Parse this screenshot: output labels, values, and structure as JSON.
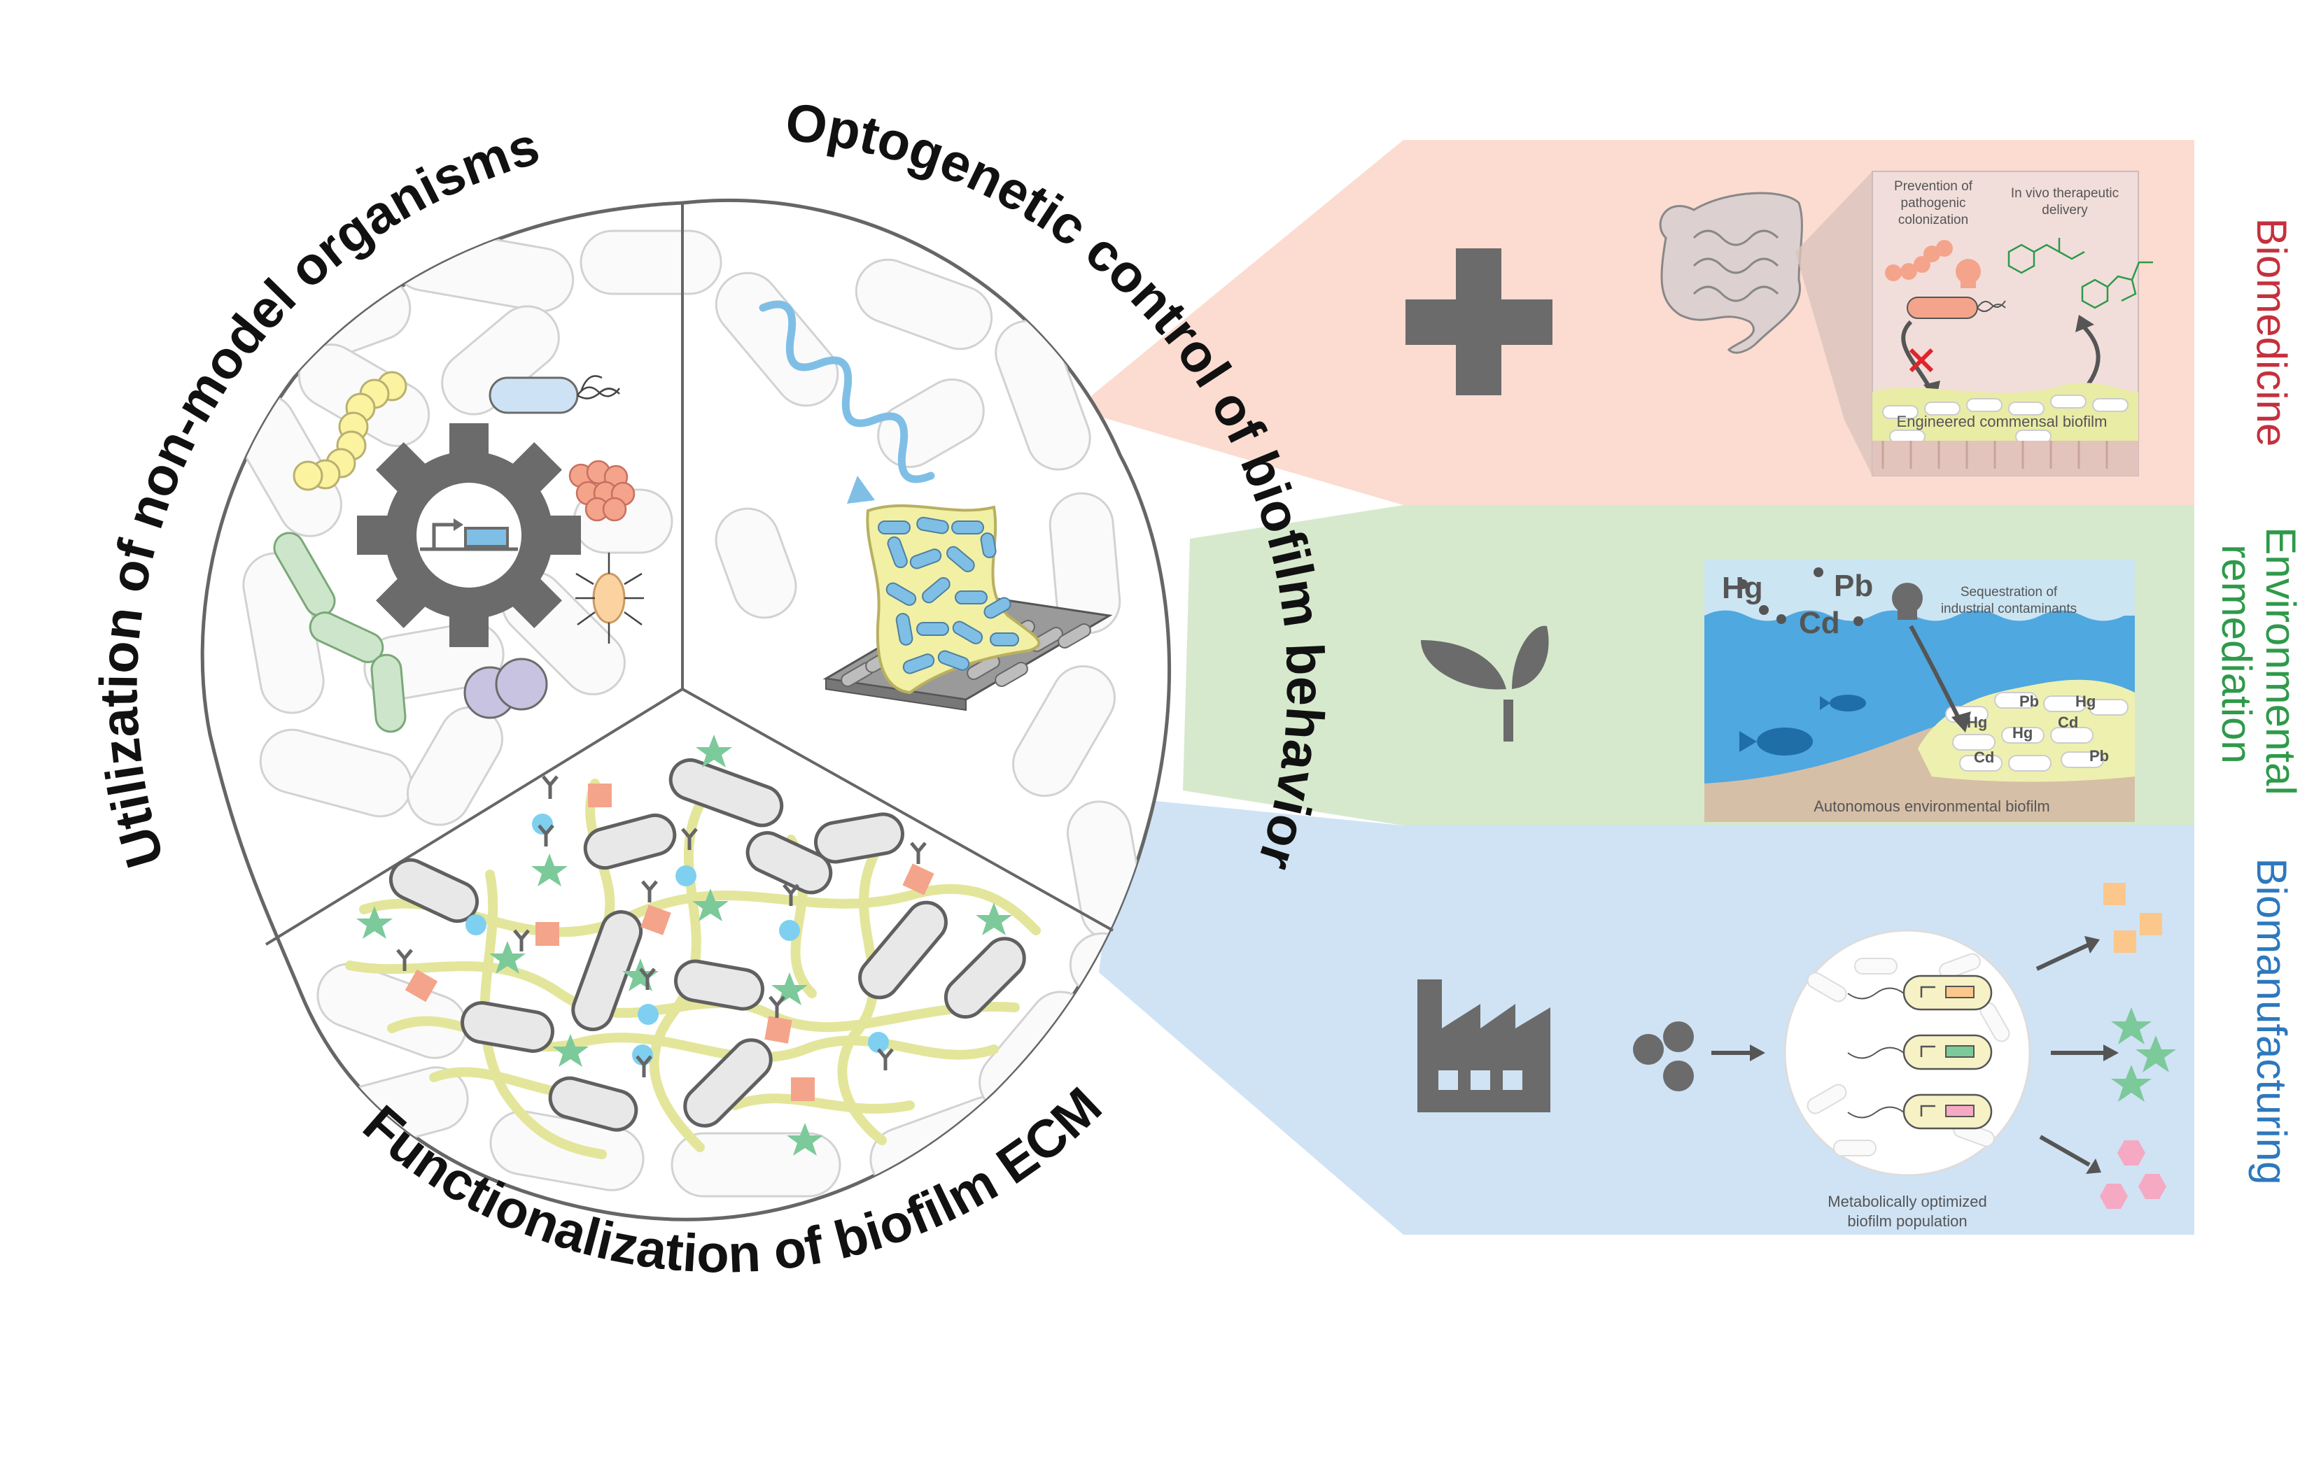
{
  "titles": {
    "nonmodel": "Utilization of non-model organisms",
    "optogenetic": "Optogenetic control of biofilm behavior",
    "ecm": "Functionalization of biofilm ECM"
  },
  "applications": {
    "biomedicine": {
      "label": "Biomedicine",
      "color": "#c3313d",
      "prevention": [
        "Prevention of",
        "pathogenic",
        "colonization"
      ],
      "delivery": [
        "In vivo therapeutic",
        "delivery"
      ],
      "biofilm": "Engineered commensal biofilm"
    },
    "environment": {
      "label_line1": "Environmental",
      "label_line2": "remediation",
      "color": "#2e9a4a",
      "metals": [
        "Hg",
        "Pb",
        "Cd"
      ],
      "sequestration": [
        "Sequestration of",
        "industrial contaminants"
      ],
      "biofilm": "Autonomous environmental biofilm"
    },
    "biomanufacturing": {
      "label": "Biomanufacturing",
      "color": "#2d78bd",
      "caption": [
        "Metabolically optimized",
        "biofilm population"
      ]
    }
  },
  "colors": {
    "biomedicine_bg": "#fcdcd0",
    "environment_bg": "#d6e9cd",
    "biomanufacturing_bg": "#cfe3f5",
    "icon_gray": "#6b6b6b"
  }
}
